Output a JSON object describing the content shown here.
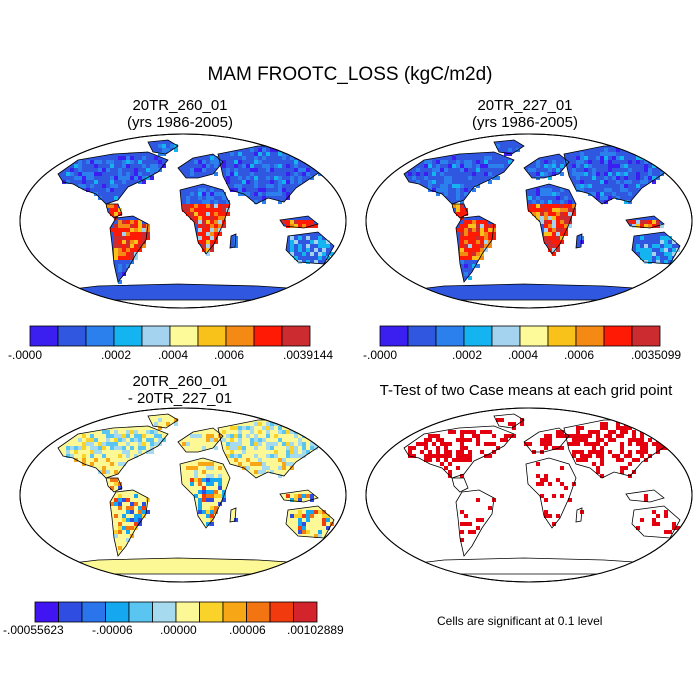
{
  "title": "MAM FROOTC_LOSS (kgC/m2d)",
  "colors": {
    "seq10": [
      "#3a1ff0",
      "#2f57e0",
      "#2c80ee",
      "#14b4f0",
      "#a3d3ef",
      "#fdfa9a",
      "#f9c21a",
      "#f48a14",
      "#ff1a05",
      "#cc2c2f"
    ],
    "diff12": [
      "#4115f2",
      "#2f4de0",
      "#2a74ec",
      "#15a7f0",
      "#5ac5f0",
      "#a6dbef",
      "#fdf896",
      "#f9d32a",
      "#f7a715",
      "#f27511",
      "#f13a0e",
      "#d2242a"
    ],
    "ocean": "#ffffff",
    "coast": "#000000",
    "signif": "#e4000f"
  },
  "panels": [
    {
      "title": "20TR_260_01\n(yrs 1986-2005)",
      "colorbar_labels": [
        "-.0000",
        ".0002",
        ".0004",
        ".0006",
        ".0039144"
      ]
    },
    {
      "title": "20TR_227_01\n(yrs 1986-2005)",
      "colorbar_labels": [
        "-.0000",
        ".0002",
        ".0004",
        ".0006",
        ".0035099"
      ]
    },
    {
      "title": "20TR_260_01\n- 20TR_227_01",
      "colorbar_labels": [
        "-.00055623",
        "-.00006",
        ".00000",
        ".00006",
        ".00102889"
      ]
    },
    {
      "title": "T-Test of two Case means at each grid point",
      "footnote": "Cells are significant at 0.1 level"
    }
  ]
}
